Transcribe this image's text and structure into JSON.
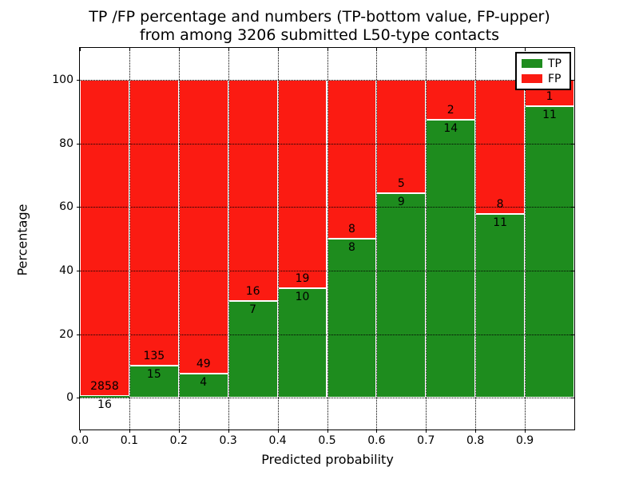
{
  "title": {
    "line1": "TP /FP percentage and numbers (TP-bottom value, FP-upper)",
    "line2": "from among 3206 submitted L50-type contacts"
  },
  "axes": {
    "xlabel": "Predicted probability",
    "ylabel": "Percentage",
    "x_tick_labels": [
      "0.0",
      "0.1",
      "0.2",
      "0.3",
      "0.4",
      "0.5",
      "0.6",
      "0.7",
      "0.8",
      "0.9"
    ],
    "x_tick_values": [
      0.0,
      0.1,
      0.2,
      0.3,
      0.4,
      0.5,
      0.6,
      0.7,
      0.8,
      0.9
    ],
    "y_tick_labels": [
      "0",
      "20",
      "40",
      "60",
      "80",
      "100"
    ],
    "y_tick_values": [
      0,
      20,
      40,
      60,
      80,
      100
    ]
  },
  "legend": {
    "items": [
      {
        "label": "TP",
        "color": "#1e8c1e"
      },
      {
        "label": "FP",
        "color": "#fb1b12"
      }
    ]
  },
  "colors": {
    "tp_green": "#1e8c1e",
    "fp_red": "#fb1b12",
    "bar_edge": "#ffffff",
    "grid": "#000000"
  },
  "chart_data": {
    "type": "bar",
    "stacked": true,
    "normalized_to_percent": true,
    "title": "TP /FP percentage and numbers (TP-bottom value, FP-upper) from among 3206 submitted L50-type contacts",
    "xlabel": "Predicted probability",
    "ylabel": "Percentage",
    "bin_starts": [
      0.0,
      0.1,
      0.2,
      0.3,
      0.4,
      0.5,
      0.6,
      0.7,
      0.8,
      0.9
    ],
    "bin_width": 0.1,
    "series": [
      {
        "name": "TP",
        "color": "#1e8c1e",
        "values": [
          16,
          15,
          4,
          7,
          10,
          8,
          9,
          14,
          11,
          11
        ]
      },
      {
        "name": "FP",
        "color": "#fb1b12",
        "values": [
          2858,
          135,
          49,
          16,
          19,
          8,
          5,
          2,
          8,
          1
        ]
      }
    ],
    "tp_percent_of_bin": [
      0.56,
      10.0,
      7.55,
      30.43,
      34.48,
      50.0,
      64.29,
      87.5,
      57.89,
      91.67
    ],
    "total_contacts": 3206,
    "xlim": [
      0.0,
      1.0
    ],
    "ylim": [
      -10,
      110
    ],
    "grid": "dotted",
    "legend_position": "upper right",
    "bar_labels": "FP count above TP/FP boundary, TP count below boundary"
  }
}
